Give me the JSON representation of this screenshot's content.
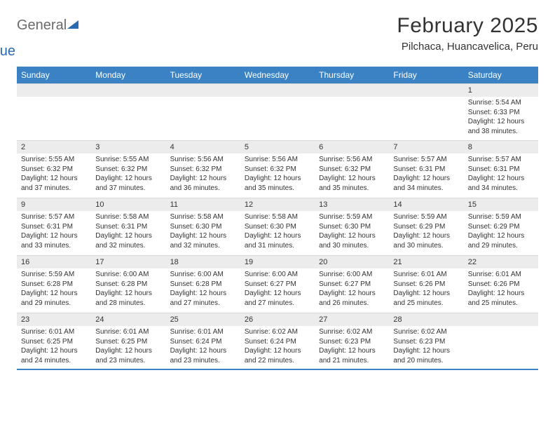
{
  "brand": {
    "part1": "General",
    "part2": "Blue"
  },
  "title": "February 2025",
  "location": "Pilchaca, Huancavelica, Peru",
  "colors": {
    "header_bg": "#3a82c4",
    "header_text": "#ffffff",
    "date_bar_bg": "#ececec",
    "text": "#333333",
    "logo_gray": "#6a6a6a",
    "logo_blue": "#2a6bb0"
  },
  "day_names": [
    "Sunday",
    "Monday",
    "Tuesday",
    "Wednesday",
    "Thursday",
    "Friday",
    "Saturday"
  ],
  "weeks": [
    [
      null,
      null,
      null,
      null,
      null,
      null,
      {
        "d": "1",
        "sr": "Sunrise: 5:54 AM",
        "ss": "Sunset: 6:33 PM",
        "dl": "Daylight: 12 hours and 38 minutes."
      }
    ],
    [
      {
        "d": "2",
        "sr": "Sunrise: 5:55 AM",
        "ss": "Sunset: 6:32 PM",
        "dl": "Daylight: 12 hours and 37 minutes."
      },
      {
        "d": "3",
        "sr": "Sunrise: 5:55 AM",
        "ss": "Sunset: 6:32 PM",
        "dl": "Daylight: 12 hours and 37 minutes."
      },
      {
        "d": "4",
        "sr": "Sunrise: 5:56 AM",
        "ss": "Sunset: 6:32 PM",
        "dl": "Daylight: 12 hours and 36 minutes."
      },
      {
        "d": "5",
        "sr": "Sunrise: 5:56 AM",
        "ss": "Sunset: 6:32 PM",
        "dl": "Daylight: 12 hours and 35 minutes."
      },
      {
        "d": "6",
        "sr": "Sunrise: 5:56 AM",
        "ss": "Sunset: 6:32 PM",
        "dl": "Daylight: 12 hours and 35 minutes."
      },
      {
        "d": "7",
        "sr": "Sunrise: 5:57 AM",
        "ss": "Sunset: 6:31 PM",
        "dl": "Daylight: 12 hours and 34 minutes."
      },
      {
        "d": "8",
        "sr": "Sunrise: 5:57 AM",
        "ss": "Sunset: 6:31 PM",
        "dl": "Daylight: 12 hours and 34 minutes."
      }
    ],
    [
      {
        "d": "9",
        "sr": "Sunrise: 5:57 AM",
        "ss": "Sunset: 6:31 PM",
        "dl": "Daylight: 12 hours and 33 minutes."
      },
      {
        "d": "10",
        "sr": "Sunrise: 5:58 AM",
        "ss": "Sunset: 6:31 PM",
        "dl": "Daylight: 12 hours and 32 minutes."
      },
      {
        "d": "11",
        "sr": "Sunrise: 5:58 AM",
        "ss": "Sunset: 6:30 PM",
        "dl": "Daylight: 12 hours and 32 minutes."
      },
      {
        "d": "12",
        "sr": "Sunrise: 5:58 AM",
        "ss": "Sunset: 6:30 PM",
        "dl": "Daylight: 12 hours and 31 minutes."
      },
      {
        "d": "13",
        "sr": "Sunrise: 5:59 AM",
        "ss": "Sunset: 6:30 PM",
        "dl": "Daylight: 12 hours and 30 minutes."
      },
      {
        "d": "14",
        "sr": "Sunrise: 5:59 AM",
        "ss": "Sunset: 6:29 PM",
        "dl": "Daylight: 12 hours and 30 minutes."
      },
      {
        "d": "15",
        "sr": "Sunrise: 5:59 AM",
        "ss": "Sunset: 6:29 PM",
        "dl": "Daylight: 12 hours and 29 minutes."
      }
    ],
    [
      {
        "d": "16",
        "sr": "Sunrise: 5:59 AM",
        "ss": "Sunset: 6:28 PM",
        "dl": "Daylight: 12 hours and 29 minutes."
      },
      {
        "d": "17",
        "sr": "Sunrise: 6:00 AM",
        "ss": "Sunset: 6:28 PM",
        "dl": "Daylight: 12 hours and 28 minutes."
      },
      {
        "d": "18",
        "sr": "Sunrise: 6:00 AM",
        "ss": "Sunset: 6:28 PM",
        "dl": "Daylight: 12 hours and 27 minutes."
      },
      {
        "d": "19",
        "sr": "Sunrise: 6:00 AM",
        "ss": "Sunset: 6:27 PM",
        "dl": "Daylight: 12 hours and 27 minutes."
      },
      {
        "d": "20",
        "sr": "Sunrise: 6:00 AM",
        "ss": "Sunset: 6:27 PM",
        "dl": "Daylight: 12 hours and 26 minutes."
      },
      {
        "d": "21",
        "sr": "Sunrise: 6:01 AM",
        "ss": "Sunset: 6:26 PM",
        "dl": "Daylight: 12 hours and 25 minutes."
      },
      {
        "d": "22",
        "sr": "Sunrise: 6:01 AM",
        "ss": "Sunset: 6:26 PM",
        "dl": "Daylight: 12 hours and 25 minutes."
      }
    ],
    [
      {
        "d": "23",
        "sr": "Sunrise: 6:01 AM",
        "ss": "Sunset: 6:25 PM",
        "dl": "Daylight: 12 hours and 24 minutes."
      },
      {
        "d": "24",
        "sr": "Sunrise: 6:01 AM",
        "ss": "Sunset: 6:25 PM",
        "dl": "Daylight: 12 hours and 23 minutes."
      },
      {
        "d": "25",
        "sr": "Sunrise: 6:01 AM",
        "ss": "Sunset: 6:24 PM",
        "dl": "Daylight: 12 hours and 23 minutes."
      },
      {
        "d": "26",
        "sr": "Sunrise: 6:02 AM",
        "ss": "Sunset: 6:24 PM",
        "dl": "Daylight: 12 hours and 22 minutes."
      },
      {
        "d": "27",
        "sr": "Sunrise: 6:02 AM",
        "ss": "Sunset: 6:23 PM",
        "dl": "Daylight: 12 hours and 21 minutes."
      },
      {
        "d": "28",
        "sr": "Sunrise: 6:02 AM",
        "ss": "Sunset: 6:23 PM",
        "dl": "Daylight: 12 hours and 20 minutes."
      },
      null
    ]
  ]
}
